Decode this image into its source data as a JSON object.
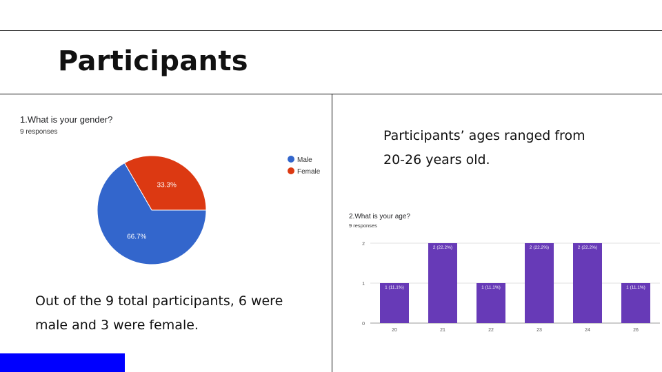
{
  "slide": {
    "title": "Participants"
  },
  "left_panel": {
    "question": "1.What is your gender?",
    "responses": "9 responses",
    "summary_line1": "Out of the 9 total participants, 6 were",
    "summary_line2": "male and 3 were female."
  },
  "right_panel": {
    "text_line1": "Participants’ ages ranged from",
    "text_line2": "20-26 years old.",
    "question": "2.What is your age?",
    "responses": "9 responses"
  },
  "chart_data": [
    {
      "type": "pie",
      "title": "1.What is your gender?",
      "categories": [
        "Male",
        "Female"
      ],
      "values": [
        6,
        3
      ],
      "labels": [
        "66.7%",
        "33.3%"
      ],
      "colors": [
        "#3366cc",
        "#dc3912"
      ],
      "legend": "right"
    },
    {
      "type": "bar",
      "title": "2.What is your age?",
      "categories": [
        "20",
        "21",
        "22",
        "23",
        "24",
        "26"
      ],
      "values": [
        1,
        2,
        1,
        2,
        2,
        1
      ],
      "labels": [
        "1 (11.1%)",
        "2 (22.2%)",
        "1 (11.1%)",
        "2 (22.2%)",
        "2 (22.2%)",
        "1 (11.1%)"
      ],
      "yticks": [
        0,
        1,
        2
      ],
      "ylim": [
        0,
        2
      ],
      "color": "#673ab7",
      "grid": true
    }
  ]
}
